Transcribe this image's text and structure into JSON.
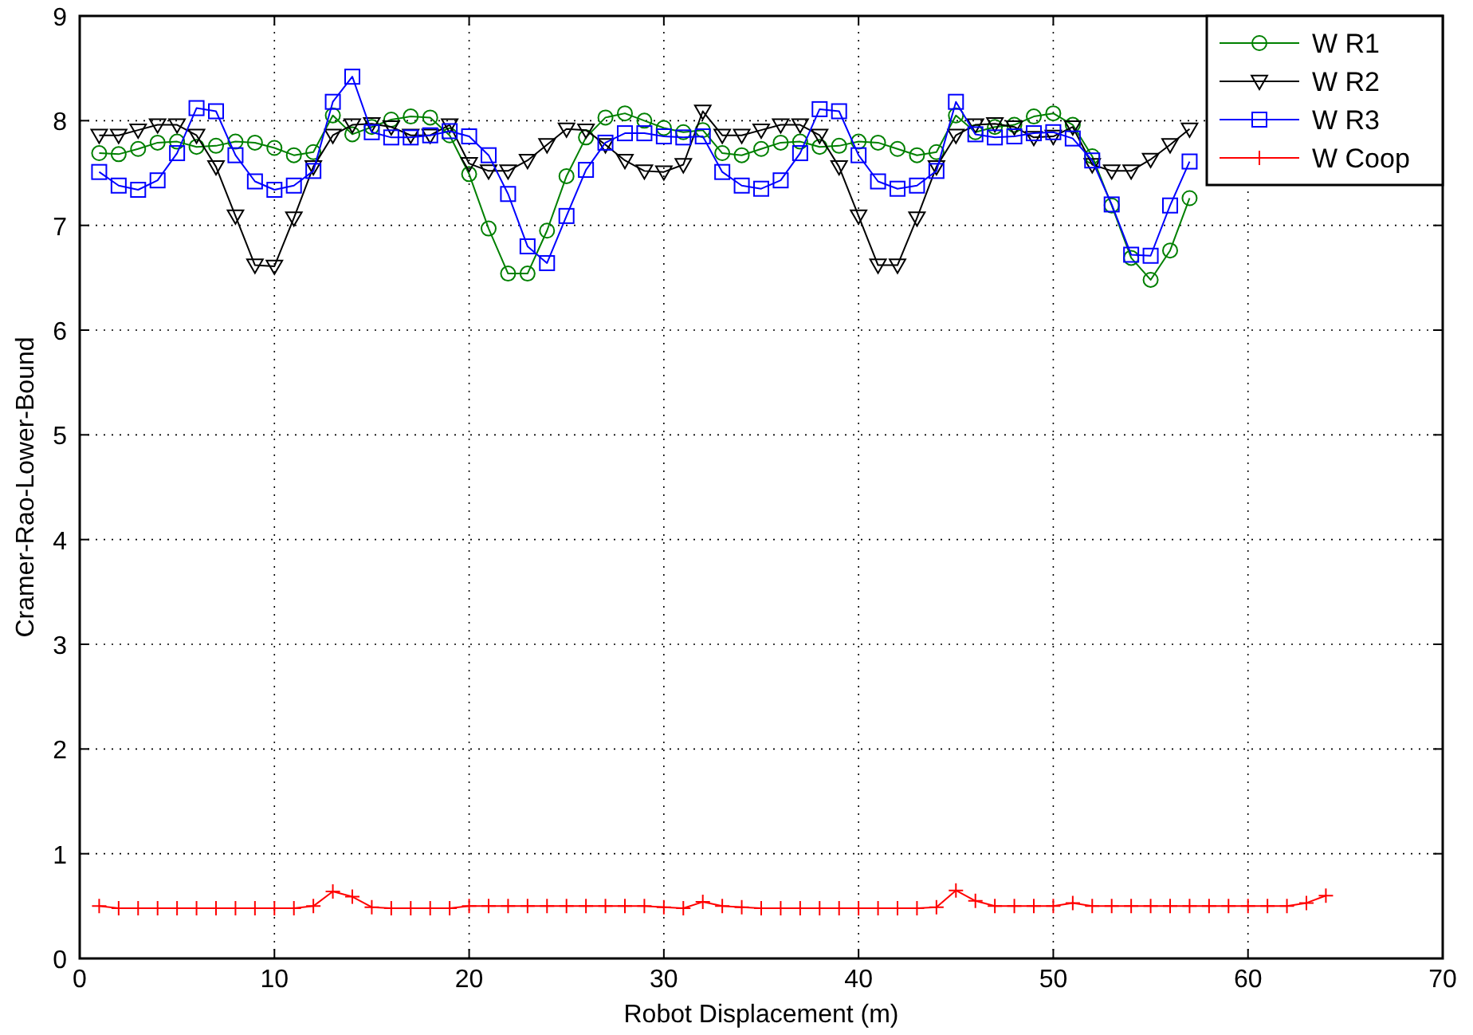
{
  "chart_data": {
    "type": "line",
    "xlabel": "Robot Displacement (m)",
    "ylabel": "Cramer-Rao-Lower-Bound",
    "xlim": [
      0,
      70
    ],
    "xticks": [
      0,
      10,
      20,
      30,
      40,
      50,
      60,
      70
    ],
    "ylim": [
      0,
      9
    ],
    "yticks": [
      0,
      1,
      2,
      3,
      4,
      5,
      6,
      7,
      8,
      9
    ],
    "grid": true,
    "legend": "top right",
    "x": [
      1,
      2,
      3,
      4,
      5,
      6,
      7,
      8,
      9,
      10,
      11,
      12,
      13,
      14,
      15,
      16,
      17,
      18,
      19,
      20,
      21,
      22,
      23,
      24,
      25,
      26,
      27,
      28,
      29,
      30,
      31,
      32,
      33,
      34,
      35,
      36,
      37,
      38,
      39,
      40,
      41,
      42,
      43,
      44,
      45,
      46,
      47,
      48,
      49,
      50,
      51,
      52,
      53,
      54,
      55,
      56,
      57,
      58,
      59,
      60,
      61,
      62,
      63,
      64
    ],
    "series": [
      {
        "name": "W R1",
        "color": "#008000",
        "marker": "circle",
        "values": [
          7.69,
          7.68,
          7.73,
          7.79,
          7.8,
          7.75,
          7.76,
          7.8,
          7.79,
          7.74,
          7.67,
          7.7,
          8.05,
          7.87,
          7.94,
          8.01,
          8.04,
          8.03,
          7.86,
          7.49,
          6.97,
          6.54,
          6.54,
          6.95,
          7.47,
          7.84,
          8.03,
          8.07,
          8.0,
          7.93,
          7.89,
          7.91,
          7.69,
          7.67,
          7.73,
          7.79,
          7.8,
          7.75,
          7.76,
          7.8,
          7.79,
          7.73,
          7.67,
          7.7,
          8.05,
          7.89,
          7.94,
          7.96,
          8.04,
          8.07,
          7.96,
          7.66,
          7.19,
          6.69,
          6.48,
          6.76,
          7.26,
          null,
          null,
          null,
          null,
          null,
          null,
          null
        ]
      },
      {
        "name": "W R2",
        "color": "#000000",
        "marker": "triangle",
        "values": [
          7.86,
          7.86,
          7.91,
          7.96,
          7.96,
          7.86,
          7.56,
          7.09,
          6.62,
          6.61,
          7.07,
          7.56,
          7.86,
          7.96,
          7.97,
          7.94,
          7.86,
          7.86,
          7.96,
          7.59,
          7.52,
          7.52,
          7.62,
          7.77,
          7.92,
          7.91,
          7.77,
          7.62,
          7.52,
          7.51,
          7.58,
          8.09,
          7.86,
          7.86,
          7.91,
          7.96,
          7.96,
          7.86,
          7.56,
          7.09,
          6.62,
          6.62,
          7.07,
          7.56,
          7.86,
          7.96,
          7.97,
          7.94,
          7.84,
          7.85,
          7.94,
          7.58,
          7.52,
          7.52,
          7.63,
          7.77,
          7.92,
          null,
          null,
          null,
          null,
          null,
          null,
          null
        ]
      },
      {
        "name": "W R3",
        "color": "#0000ff",
        "marker": "square",
        "values": [
          7.51,
          7.38,
          7.34,
          7.43,
          7.69,
          8.12,
          8.09,
          7.67,
          7.42,
          7.34,
          7.38,
          7.52,
          8.18,
          8.42,
          7.89,
          7.84,
          7.84,
          7.86,
          7.9,
          7.85,
          7.67,
          7.3,
          6.8,
          6.64,
          7.09,
          7.53,
          7.79,
          7.88,
          7.88,
          7.85,
          7.84,
          7.85,
          7.51,
          7.38,
          7.35,
          7.43,
          7.69,
          8.11,
          8.09,
          7.67,
          7.42,
          7.35,
          7.38,
          7.52,
          8.18,
          7.87,
          7.84,
          7.85,
          7.88,
          7.89,
          7.83,
          7.62,
          7.2,
          6.72,
          6.71,
          7.19,
          7.61,
          null,
          null,
          null,
          null,
          null,
          null,
          null
        ]
      },
      {
        "name": "W Coop",
        "color": "#ff0000",
        "marker": "cross",
        "values": [
          0.5,
          0.48,
          0.48,
          0.48,
          0.48,
          0.48,
          0.48,
          0.48,
          0.48,
          0.48,
          0.48,
          0.5,
          0.64,
          0.59,
          0.49,
          0.48,
          0.48,
          0.48,
          0.48,
          0.5,
          0.5,
          0.5,
          0.5,
          0.5,
          0.5,
          0.5,
          0.5,
          0.5,
          0.5,
          0.49,
          0.48,
          0.54,
          0.5,
          0.49,
          0.48,
          0.48,
          0.48,
          0.48,
          0.48,
          0.48,
          0.48,
          0.48,
          0.48,
          0.49,
          0.65,
          0.55,
          0.5,
          0.5,
          0.5,
          0.5,
          0.53,
          0.5,
          0.5,
          0.5,
          0.5,
          0.5,
          0.5,
          0.5,
          0.5,
          0.5,
          0.5,
          0.5,
          0.53,
          0.6
        ]
      }
    ]
  }
}
